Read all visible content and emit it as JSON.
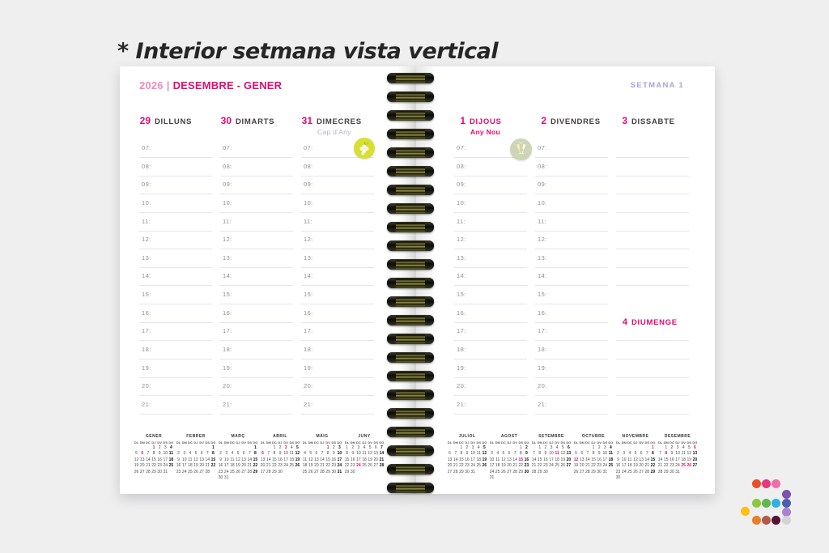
{
  "page_title": "* Interior setmana vista vertical",
  "spread": {
    "left_page": {
      "year": "2026",
      "separator": "|",
      "range_title": "DESEMBRE - GENER",
      "days": [
        {
          "num": "29",
          "name": "DILLUNS"
        },
        {
          "num": "30",
          "name": "DIMARTS"
        },
        {
          "num": "31",
          "name": "DIMECRES",
          "note": "Cap d'Any",
          "note_style": "lavender",
          "sticker": "grapes-icon"
        }
      ]
    },
    "right_page": {
      "week_label": "SETMANA 1",
      "days": [
        {
          "num": "1",
          "name": "DIJOUS",
          "highlight": true,
          "note": "Any Nou",
          "note_style": "magenta",
          "sticker": "champagne-glasses-icon"
        },
        {
          "num": "2",
          "name": "DIVENDRES"
        },
        {
          "num": "3",
          "name": "DISSABTE",
          "blank": true
        }
      ],
      "sunday": {
        "num": "4",
        "name": "DIUMENGE"
      }
    }
  },
  "times": [
    "07:",
    "08:",
    "09:",
    "10:",
    "11:",
    "12:",
    "13:",
    "14:",
    "15:",
    "16:",
    "17:",
    "18:",
    "19:",
    "20:",
    "21:"
  ],
  "calendars": {
    "dow": [
      "DL",
      "DM",
      "DC",
      "DJ",
      "DV",
      "DS",
      "DG"
    ],
    "left": [
      {
        "name": "GENER",
        "start": 3,
        "days": 31,
        "holidays": [
          1,
          6
        ]
      },
      {
        "name": "FEBRER",
        "start": 6,
        "days": 28,
        "holidays": []
      },
      {
        "name": "MARÇ",
        "start": 6,
        "days": 31,
        "holidays": []
      },
      {
        "name": "ABRIL",
        "start": 2,
        "days": 30,
        "holidays": [
          3,
          6
        ]
      },
      {
        "name": "MAIG",
        "start": 4,
        "days": 31,
        "holidays": [
          1
        ]
      },
      {
        "name": "JUNY",
        "start": 0,
        "days": 30,
        "holidays": [
          24
        ]
      }
    ],
    "right": [
      {
        "name": "JULIOL",
        "start": 2,
        "days": 31,
        "holidays": []
      },
      {
        "name": "AGOST",
        "start": 5,
        "days": 31,
        "holidays": [
          15
        ]
      },
      {
        "name": "SETEMBRE",
        "start": 1,
        "days": 30,
        "holidays": [
          11
        ]
      },
      {
        "name": "OCTUBRE",
        "start": 3,
        "days": 31,
        "holidays": [
          12
        ]
      },
      {
        "name": "NOVEMBRE",
        "start": 6,
        "days": 30,
        "holidays": [
          1
        ]
      },
      {
        "name": "DESEMBRE",
        "start": 1,
        "days": 31,
        "holidays": [
          6,
          8,
          25,
          26
        ]
      }
    ]
  },
  "colors": {
    "magenta": "#e20a72",
    "light_pink": "#f08ab8",
    "lavender": "#a9a4d8",
    "slot_line": "#e6e4f1",
    "day_name_text": "#443e40",
    "time_label_text": "#908d8d",
    "page_background": "#ffffff",
    "canvas_background": "#efeff0",
    "grapes_sticker_bg": "#d9df2e",
    "champagne_sticker_bg": "#ccd5b6",
    "spiral_dark": "#14140c",
    "spiral_olive": "#8a8a3a"
  },
  "logo_dot_colors": [
    "#e94e27",
    "#e7367d",
    "#ed6fa9",
    "#7b50ae",
    "#8dc63f",
    "#5eb84c",
    "#2bb1e6",
    "#4c5faf",
    "#fdc00d",
    "#a980cf",
    "#ef7d25",
    "#b05a46",
    "#561138",
    "#d4d2d5"
  ]
}
